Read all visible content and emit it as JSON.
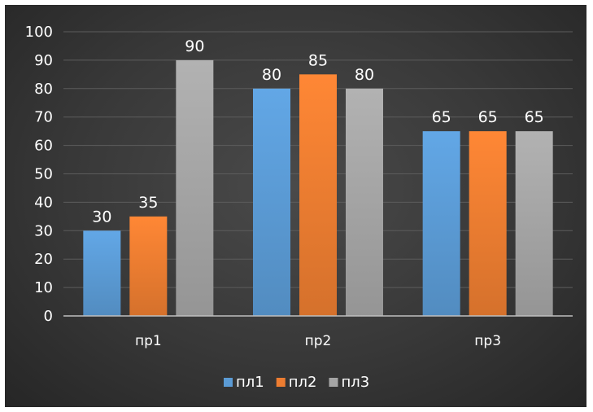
{
  "chart_data": {
    "type": "bar",
    "categories": [
      "пр1",
      "пр2",
      "пр3"
    ],
    "series": [
      {
        "name": "пл1",
        "values": [
          30,
          80,
          65
        ],
        "color": "#5b9bd5"
      },
      {
        "name": "пл2",
        "values": [
          35,
          85,
          65
        ],
        "color": "#ed7d31"
      },
      {
        "name": "пл3",
        "values": [
          90,
          80,
          65
        ],
        "color": "#a5a5a5"
      }
    ],
    "ylim": [
      0,
      100
    ],
    "yticks": [
      "0",
      "10",
      "20",
      "30",
      "40",
      "50",
      "60",
      "70",
      "80",
      "90",
      "100"
    ],
    "grid": true,
    "legend_position": "bottom",
    "data_labels": true,
    "background": "#3a3a3a"
  }
}
